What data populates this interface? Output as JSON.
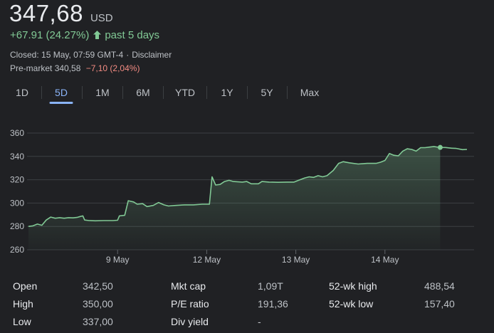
{
  "quote": {
    "price": "347,68",
    "currency": "USD",
    "change": "+67.91 (24.27%)",
    "period": "past 5 days",
    "closed": "Closed: 15 May, 07:59 GMT-4",
    "disclaimer": "Disclaimer",
    "premarket_label": "Pre-market",
    "premarket_price": "340,58",
    "premarket_change": "−7,10 (2,04%)"
  },
  "colors": {
    "positive": "#81c995",
    "negative": "#f28b82",
    "accent": "#8ab4f8"
  },
  "tabs": [
    {
      "label": "1D"
    },
    {
      "label": "5D",
      "active": true
    },
    {
      "label": "1M"
    },
    {
      "label": "6M"
    },
    {
      "label": "YTD"
    },
    {
      "label": "1Y"
    },
    {
      "label": "5Y"
    },
    {
      "label": "Max"
    }
  ],
  "chart_data": {
    "type": "area",
    "ylim": [
      260,
      360
    ],
    "yticks": [
      "360",
      "340",
      "320",
      "300",
      "280",
      "260"
    ],
    "ytick_values": [
      360,
      340,
      320,
      300,
      280,
      260
    ],
    "xtick_labels": [
      {
        "label": "9 May",
        "x": 1
      },
      {
        "label": "12 May",
        "x": 2
      },
      {
        "label": "13 May",
        "x": 3
      },
      {
        "label": "14 May",
        "x": 4
      }
    ],
    "x_range": [
      0,
      5
    ],
    "grid": true,
    "points": [
      [
        0.0,
        280.0
      ],
      [
        0.05,
        280.5
      ],
      [
        0.1,
        282.0
      ],
      [
        0.15,
        281.0
      ],
      [
        0.2,
        285.5
      ],
      [
        0.25,
        288.0
      ],
      [
        0.3,
        287.0
      ],
      [
        0.35,
        287.5
      ],
      [
        0.4,
        287.0
      ],
      [
        0.45,
        287.5
      ],
      [
        0.5,
        287.3
      ],
      [
        0.55,
        287.8
      ],
      [
        0.58,
        288.5
      ],
      [
        0.61,
        289.0
      ],
      [
        0.63,
        285.5
      ],
      [
        0.68,
        285.0
      ],
      [
        0.75,
        284.8
      ],
      [
        0.85,
        285.0
      ],
      [
        0.95,
        285.0
      ],
      [
        1.0,
        285.3
      ],
      [
        1.02,
        289.0
      ],
      [
        1.08,
        289.5
      ],
      [
        1.12,
        302.0
      ],
      [
        1.18,
        301.0
      ],
      [
        1.22,
        299.0
      ],
      [
        1.28,
        299.5
      ],
      [
        1.33,
        297.0
      ],
      [
        1.4,
        298.0
      ],
      [
        1.46,
        300.5
      ],
      [
        1.52,
        298.5
      ],
      [
        1.57,
        297.5
      ],
      [
        1.65,
        298.0
      ],
      [
        1.75,
        298.5
      ],
      [
        1.85,
        298.5
      ],
      [
        1.95,
        299.0
      ],
      [
        2.0,
        299.0
      ],
      [
        2.03,
        299.0
      ],
      [
        2.06,
        322.5
      ],
      [
        2.1,
        315.5
      ],
      [
        2.15,
        316.0
      ],
      [
        2.2,
        318.5
      ],
      [
        2.25,
        319.5
      ],
      [
        2.3,
        318.5
      ],
      [
        2.4,
        318.0
      ],
      [
        2.45,
        318.5
      ],
      [
        2.5,
        316.5
      ],
      [
        2.58,
        316.5
      ],
      [
        2.62,
        318.5
      ],
      [
        2.7,
        318.0
      ],
      [
        2.8,
        317.8
      ],
      [
        2.9,
        318.0
      ],
      [
        2.98,
        318.0
      ],
      [
        3.03,
        319.5
      ],
      [
        3.1,
        321.5
      ],
      [
        3.15,
        322.5
      ],
      [
        3.2,
        322.0
      ],
      [
        3.25,
        323.5
      ],
      [
        3.3,
        322.5
      ],
      [
        3.35,
        323.5
      ],
      [
        3.42,
        328.0
      ],
      [
        3.48,
        334.0
      ],
      [
        3.53,
        335.5
      ],
      [
        3.6,
        334.5
      ],
      [
        3.7,
        333.5
      ],
      [
        3.8,
        334.0
      ],
      [
        3.9,
        334.0
      ],
      [
        3.95,
        335.0
      ],
      [
        4.0,
        336.5
      ],
      [
        4.05,
        342.5
      ],
      [
        4.1,
        341.0
      ],
      [
        4.15,
        340.5
      ],
      [
        4.2,
        344.5
      ],
      [
        4.25,
        346.5
      ],
      [
        4.3,
        346.0
      ],
      [
        4.35,
        344.5
      ],
      [
        4.4,
        347.5
      ],
      [
        4.45,
        347.5
      ],
      [
        4.5,
        348.0
      ],
      [
        4.55,
        348.5
      ],
      [
        4.6,
        347.8
      ],
      [
        4.62,
        347.7
      ],
      [
        4.68,
        347.6
      ],
      [
        4.75,
        347.0
      ],
      [
        4.8,
        346.8
      ],
      [
        4.87,
        345.8
      ],
      [
        4.92,
        346.0
      ]
    ],
    "marker_index": 80,
    "line_color": "#81c995",
    "grid_color": "#3c4043"
  },
  "stats": {
    "col1": [
      {
        "label": "Open",
        "value": "342,50"
      },
      {
        "label": "High",
        "value": "350,00"
      },
      {
        "label": "Low",
        "value": "337,00"
      }
    ],
    "col2": [
      {
        "label": "Mkt cap",
        "value": "1,09T"
      },
      {
        "label": "P/E ratio",
        "value": "191,36"
      },
      {
        "label": "Div yield",
        "value": "-"
      }
    ],
    "col3": [
      {
        "label": "52-wk high",
        "value": "488,54"
      },
      {
        "label": "52-wk low",
        "value": "157,40"
      }
    ]
  }
}
